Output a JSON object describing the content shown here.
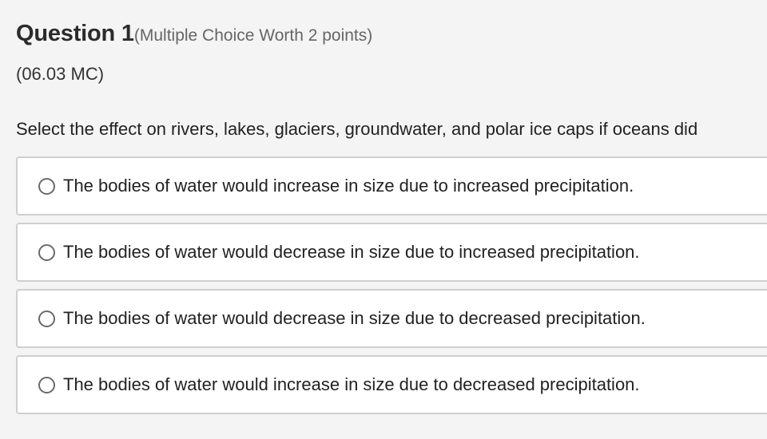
{
  "question": {
    "title": "Question 1",
    "meta": "(Multiple Choice Worth 2 points)",
    "code": "(06.03 MC)",
    "prompt": "Select the effect on rivers, lakes, glaciers, groundwater, and polar ice caps if oceans did"
  },
  "choices": [
    {
      "label": "The bodies of water would increase in size due to increased precipitation.",
      "selected": false
    },
    {
      "label": "The bodies of water would decrease in size due to increased precipitation.",
      "selected": false
    },
    {
      "label": "The bodies of water would decrease in size due to decreased precipitation.",
      "selected": false
    },
    {
      "label": "The bodies of water would increase in size due to decreased precipitation.",
      "selected": false
    }
  ],
  "icons": {
    "radio": "radio-unchecked-icon"
  },
  "colors": {
    "background": "#f4f4f4",
    "card": "#ffffff",
    "border": "#cfcfcf",
    "meta_text": "#666666"
  }
}
